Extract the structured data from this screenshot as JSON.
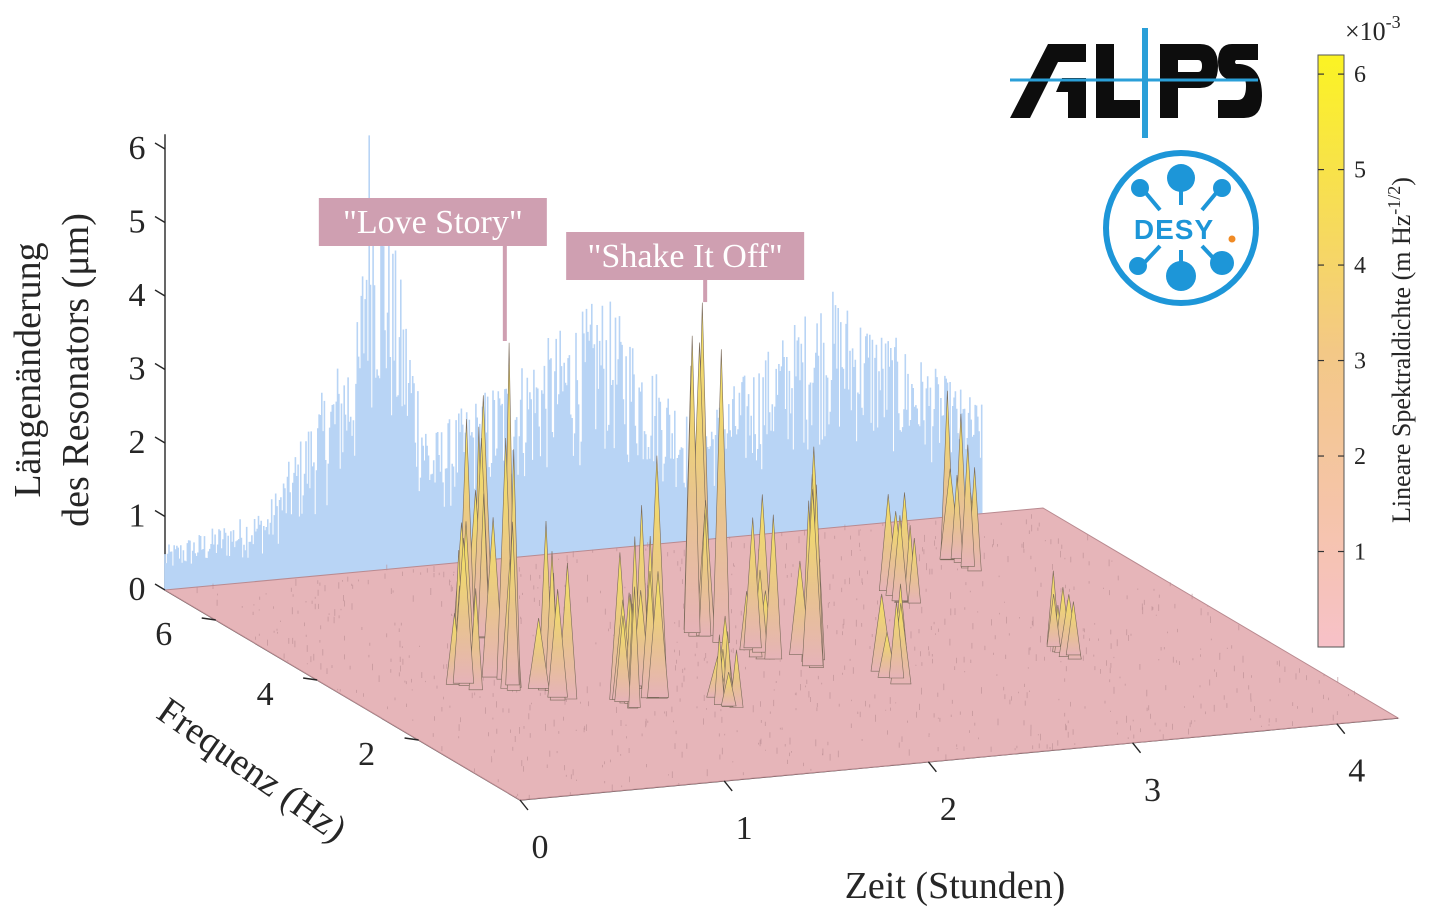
{
  "chart_data": {
    "type": "surface3d",
    "xlabel": "Zeit (Stunden)",
    "ylabel": "Frequenz (Hz)",
    "zlabel_line1": "Längenänderung",
    "zlabel_line2": "des Resonators (μm)",
    "x_ticks": [
      "0",
      "1",
      "2",
      "3",
      "4"
    ],
    "y_ticks": [
      "2",
      "4",
      "6"
    ],
    "z_ticks": [
      "0",
      "1",
      "2",
      "3",
      "4",
      "5",
      "6"
    ],
    "xlim": [
      0,
      4.3
    ],
    "ylim": [
      0,
      7
    ],
    "zlim": [
      0,
      6.5
    ],
    "time_series": {
      "color": "#b8d4f5",
      "note_points": [
        {
          "t": 0.0,
          "z": 0.6
        },
        {
          "t": 0.5,
          "z": 1.0
        },
        {
          "t": 0.95,
          "z": 3.5
        },
        {
          "t": 1.0,
          "z": 6.3
        },
        {
          "t": 1.3,
          "z": 1.8
        },
        {
          "t": 2.15,
          "z": 3.5
        },
        {
          "t": 2.6,
          "z": 1.6
        },
        {
          "t": 3.25,
          "z": 3.3
        },
        {
          "t": 4.0,
          "z": 1.5
        }
      ]
    },
    "peaks": [
      {
        "t": 0.78,
        "f": 3.4,
        "amp": 4.6
      },
      {
        "t": 1.0,
        "f": 5.0,
        "amp": 3.3
      },
      {
        "t": 1.3,
        "f": 2.8,
        "amp": 3.3
      },
      {
        "t": 0.9,
        "f": 3.0,
        "amp": 2.3
      },
      {
        "t": 0.58,
        "f": 3.5,
        "amp": 2.2
      },
      {
        "t": 1.15,
        "f": 2.5,
        "amp": 2.0
      },
      {
        "t": 1.95,
        "f": 4.2,
        "amp": 4.5
      },
      {
        "t": 2.22,
        "f": 3.2,
        "amp": 2.9
      },
      {
        "t": 2.05,
        "f": 3.6,
        "amp": 2.2
      },
      {
        "t": 2.45,
        "f": 2.5,
        "amp": 1.3
      },
      {
        "t": 3.55,
        "f": 5.6,
        "amp": 2.3
      },
      {
        "t": 3.05,
        "f": 4.8,
        "amp": 1.5
      },
      {
        "t": 1.55,
        "f": 2.3,
        "amp": 1.2
      },
      {
        "t": 3.35,
        "f": 2.8,
        "amp": 1.0
      }
    ],
    "annotations": [
      {
        "text": "\"Love Story\"",
        "t": 0.78,
        "f": 3.4
      },
      {
        "text": "\"Shake It Off\"",
        "t": 1.95,
        "f": 4.2
      }
    ],
    "colorbar": {
      "label": "Lineare Spektraldichte (m Hz",
      "label_exp": "-1/2",
      "label_close": ")",
      "multiplier_base": "×10",
      "multiplier_exp": "-3",
      "ticks": [
        "1",
        "2",
        "3",
        "4",
        "5",
        "6"
      ],
      "range": [
        0,
        6.2
      ],
      "colors": {
        "low": "#f7c1c8",
        "mid": "#f3c886",
        "high": "#fbf323"
      }
    },
    "surface_colors": {
      "low": "#e6b3b8",
      "mid": "#e8c48d",
      "high": "#f6e55c"
    },
    "grid": false
  },
  "logos": {
    "alps": {
      "text": "AL|PS",
      "color_dark": "#0d0d0d",
      "color_accent": "#2a9fd8"
    },
    "desy": {
      "text": "DESY",
      "dot_color": "#f08a24",
      "color": "#1d96d8"
    }
  },
  "annotation_style": {
    "bg": "#cf9fb1"
  }
}
